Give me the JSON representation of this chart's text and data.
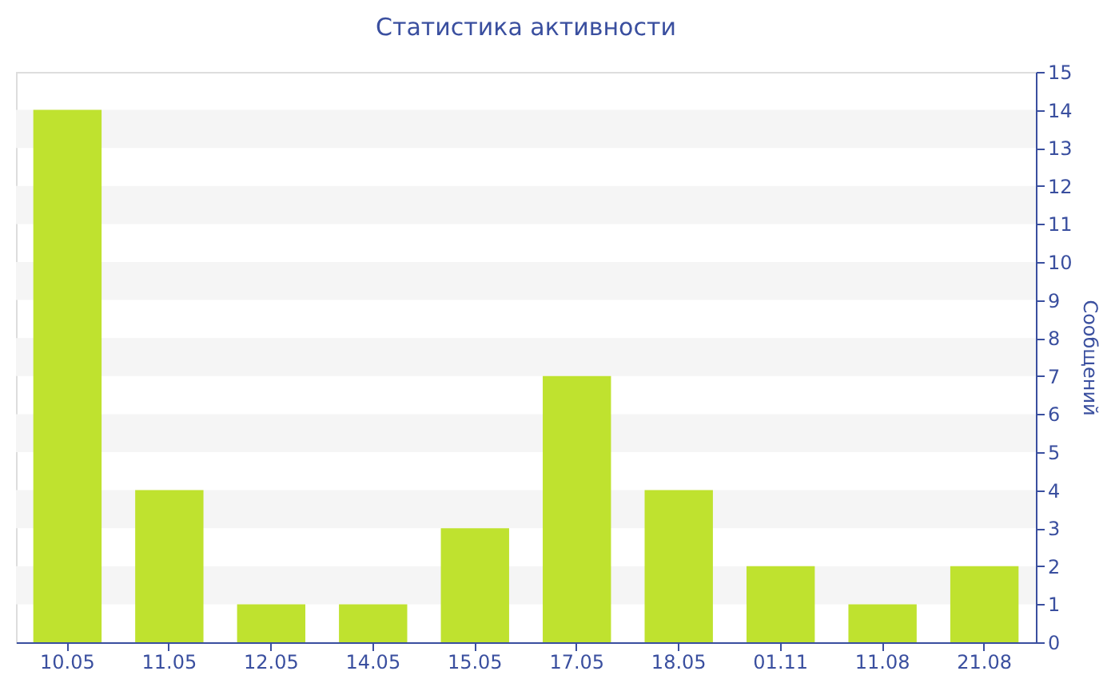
{
  "chart_data": {
    "type": "bar",
    "title": "Статистика активности",
    "ylabel": "Сообщений",
    "categories": [
      "10.05",
      "11.05",
      "12.05",
      "14.05",
      "15.05",
      "17.05",
      "18.05",
      "01.11",
      "11.08",
      "21.08"
    ],
    "values": [
      14,
      4,
      1,
      1,
      3,
      7,
      4,
      2,
      1,
      2
    ],
    "color": "#bfe22f",
    "ylim": [
      0,
      15
    ],
    "yticks": [
      0,
      1,
      2,
      3,
      4,
      5,
      6,
      7,
      8,
      9,
      10,
      11,
      12,
      13,
      14,
      15
    ],
    "bands": [
      {
        "axis": "y",
        "from": 1,
        "to": 2,
        "color": "#f5f5f5"
      },
      {
        "axis": "y",
        "from": 3,
        "to": 4,
        "color": "#f5f5f5"
      },
      {
        "axis": "y",
        "from": 5,
        "to": 6,
        "color": "#f5f5f5"
      },
      {
        "axis": "y",
        "from": 7,
        "to": 8,
        "color": "#f5f5f5"
      },
      {
        "axis": "y",
        "from": 9,
        "to": 10,
        "color": "#f5f5f5"
      },
      {
        "axis": "y",
        "from": 11,
        "to": 12,
        "color": "#f5f5f5"
      },
      {
        "axis": "y",
        "from": 13,
        "to": 14,
        "color": "#f5f5f5"
      }
    ]
  }
}
